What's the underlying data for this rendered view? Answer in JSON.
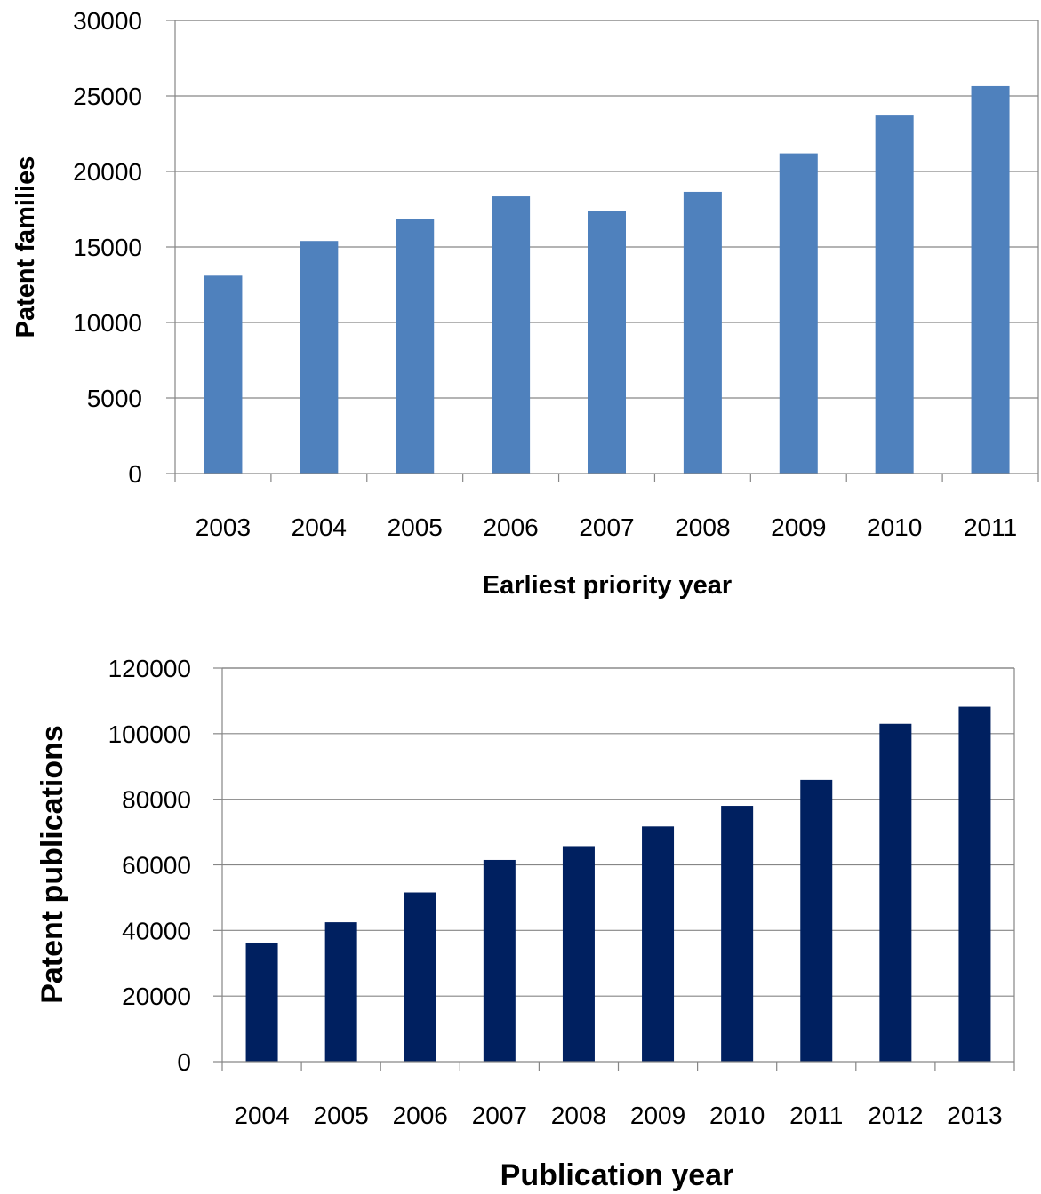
{
  "chart_data": [
    {
      "type": "bar",
      "title": "",
      "xlabel": "Earliest priority year",
      "ylabel": "Patent families",
      "categories": [
        "2003",
        "2004",
        "2005",
        "2006",
        "2007",
        "2008",
        "2009",
        "2010",
        "2011"
      ],
      "values": [
        13100,
        15400,
        16850,
        18350,
        17400,
        18650,
        21200,
        23700,
        25650
      ],
      "ylim": [
        0,
        30000
      ],
      "yticks": [
        0,
        5000,
        10000,
        15000,
        20000,
        25000,
        30000
      ],
      "grid": true,
      "colors": {
        "bar": "#4f81bd"
      }
    },
    {
      "type": "bar",
      "title": "",
      "xlabel": "Publication year",
      "ylabel": "Patent publications",
      "categories": [
        "2004",
        "2005",
        "2006",
        "2007",
        "2008",
        "2009",
        "2010",
        "2011",
        "2012",
        "2013"
      ],
      "values": [
        36300,
        42500,
        51600,
        61500,
        65700,
        71700,
        78000,
        85900,
        103000,
        108200
      ],
      "ylim": [
        0,
        120000
      ],
      "yticks": [
        0,
        20000,
        40000,
        60000,
        80000,
        100000,
        120000
      ],
      "grid": true,
      "colors": {
        "bar": "#002060"
      }
    }
  ]
}
